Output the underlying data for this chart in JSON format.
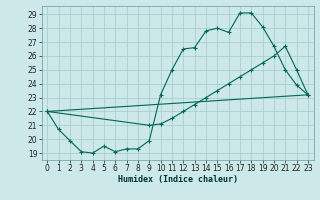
{
  "xlabel": "Humidex (Indice chaleur)",
  "background_color": "#cce8e8",
  "grid_color": "#aacfcf",
  "line_color": "#006655",
  "xlim": [
    -0.5,
    23.5
  ],
  "ylim": [
    18.5,
    29.6
  ],
  "xticks": [
    0,
    1,
    2,
    3,
    4,
    5,
    6,
    7,
    8,
    9,
    10,
    11,
    12,
    13,
    14,
    15,
    16,
    17,
    18,
    19,
    20,
    21,
    22,
    23
  ],
  "yticks": [
    19,
    20,
    21,
    22,
    23,
    24,
    25,
    26,
    27,
    28,
    29
  ],
  "line1_x": [
    0,
    1,
    2,
    3,
    4,
    5,
    6,
    7,
    8,
    9,
    10,
    11,
    12,
    13,
    14,
    15,
    16,
    17,
    18,
    19,
    20,
    21,
    22,
    23
  ],
  "line1_y": [
    22.0,
    20.7,
    19.9,
    19.1,
    19.0,
    19.5,
    19.1,
    19.3,
    19.3,
    19.9,
    23.2,
    25.0,
    26.5,
    26.6,
    27.8,
    28.0,
    27.7,
    29.1,
    29.1,
    28.1,
    26.7,
    25.0,
    23.9,
    23.2
  ],
  "line2_x": [
    0,
    9,
    10,
    11,
    12,
    13,
    14,
    15,
    16,
    17,
    18,
    19,
    20,
    21,
    22,
    23
  ],
  "line2_y": [
    22.0,
    21.0,
    21.1,
    21.5,
    22.0,
    22.5,
    23.0,
    23.5,
    24.0,
    24.5,
    25.0,
    25.5,
    26.0,
    26.7,
    25.0,
    23.2
  ],
  "line3_x": [
    0,
    23
  ],
  "line3_y": [
    22.0,
    23.2
  ]
}
